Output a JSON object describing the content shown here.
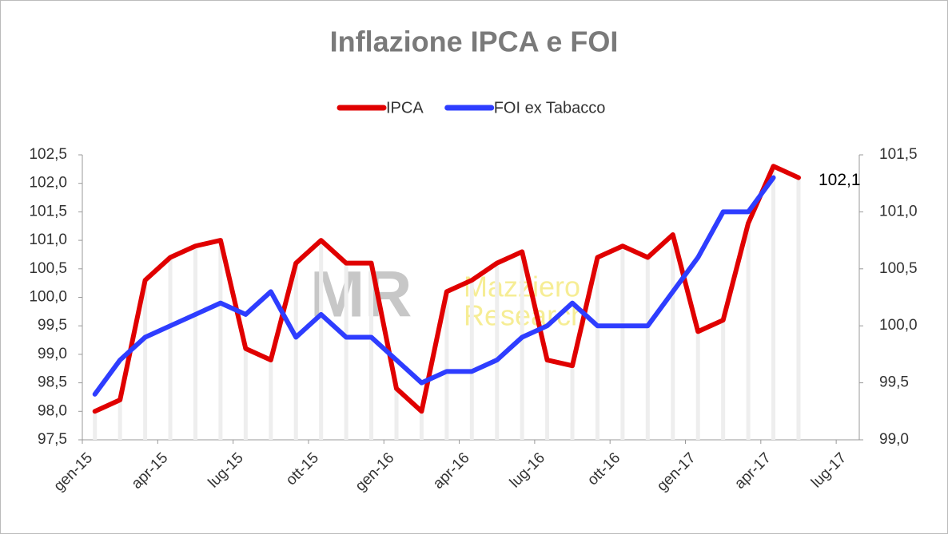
{
  "chart_data": {
    "type": "line",
    "title": "Inflazione IPCA e FOI",
    "annotations": [
      "MR",
      "Mazziero",
      "Research"
    ],
    "categories": [
      "gen-15",
      null,
      null,
      "apr-15",
      null,
      null,
      "lug-15",
      null,
      null,
      "ott-15",
      null,
      null,
      "gen-16",
      null,
      null,
      "apr-16",
      null,
      null,
      "lug-16",
      null,
      null,
      "ott-16",
      null,
      null,
      "gen-17",
      null,
      null,
      "apr-17",
      null,
      null,
      "lug-17"
    ],
    "series": [
      {
        "name": "IPCA",
        "color": "#e00000",
        "axis": "y",
        "values": [
          98.0,
          98.2,
          100.3,
          100.7,
          100.9,
          101.0,
          99.1,
          98.9,
          100.6,
          101.0,
          100.6,
          100.6,
          98.4,
          98.0,
          100.1,
          100.3,
          100.6,
          100.8,
          98.9,
          98.8,
          100.7,
          100.9,
          100.7,
          101.1,
          99.4,
          99.6,
          101.3,
          102.3,
          102.1,
          null,
          null
        ],
        "value_labels": [
          null,
          null,
          null,
          null,
          null,
          null,
          null,
          null,
          null,
          null,
          null,
          null,
          null,
          null,
          null,
          null,
          null,
          null,
          null,
          null,
          null,
          null,
          null,
          null,
          null,
          null,
          null,
          null,
          "102,1",
          null,
          null
        ]
      },
      {
        "name": "FOI ex Tabacco",
        "color": "#2e3dff",
        "axis": "y2",
        "values": [
          99.4,
          99.7,
          99.9,
          100.0,
          100.1,
          100.2,
          100.1,
          100.3,
          99.9,
          100.1,
          99.9,
          99.9,
          99.7,
          99.5,
          99.6,
          99.6,
          99.7,
          99.9,
          100.0,
          100.2,
          100.0,
          100.0,
          100.0,
          100.3,
          100.6,
          101.0,
          101.0,
          101.3,
          null,
          null,
          null
        ]
      }
    ],
    "ylim": [
      97.5,
      102.5
    ],
    "yticks": [
      {
        "value": 97.5,
        "label": "97,5"
      },
      {
        "value": 98,
        "label": "98,0"
      },
      {
        "value": 98.5,
        "label": "98,5"
      },
      {
        "value": 99,
        "label": "99,0"
      },
      {
        "value": 99.5,
        "label": "99,5"
      },
      {
        "value": 100,
        "label": "100,0"
      },
      {
        "value": 100.5,
        "label": "100,5"
      },
      {
        "value": 101,
        "label": "101,0"
      },
      {
        "value": 101.5,
        "label": "101,5"
      },
      {
        "value": 102,
        "label": "102,0"
      },
      {
        "value": 102.5,
        "label": "102,5"
      }
    ],
    "y2lim": [
      99,
      101.5
    ],
    "y2ticks": [
      {
        "value": 99,
        "label": "99,0"
      },
      {
        "value": 99.5,
        "label": "99,5"
      },
      {
        "value": 100,
        "label": "100,0"
      },
      {
        "value": 100.5,
        "label": "100,5"
      },
      {
        "value": 101,
        "label": "101,0"
      },
      {
        "value": 101.5,
        "label": "101,5"
      }
    ],
    "legend": "top"
  }
}
